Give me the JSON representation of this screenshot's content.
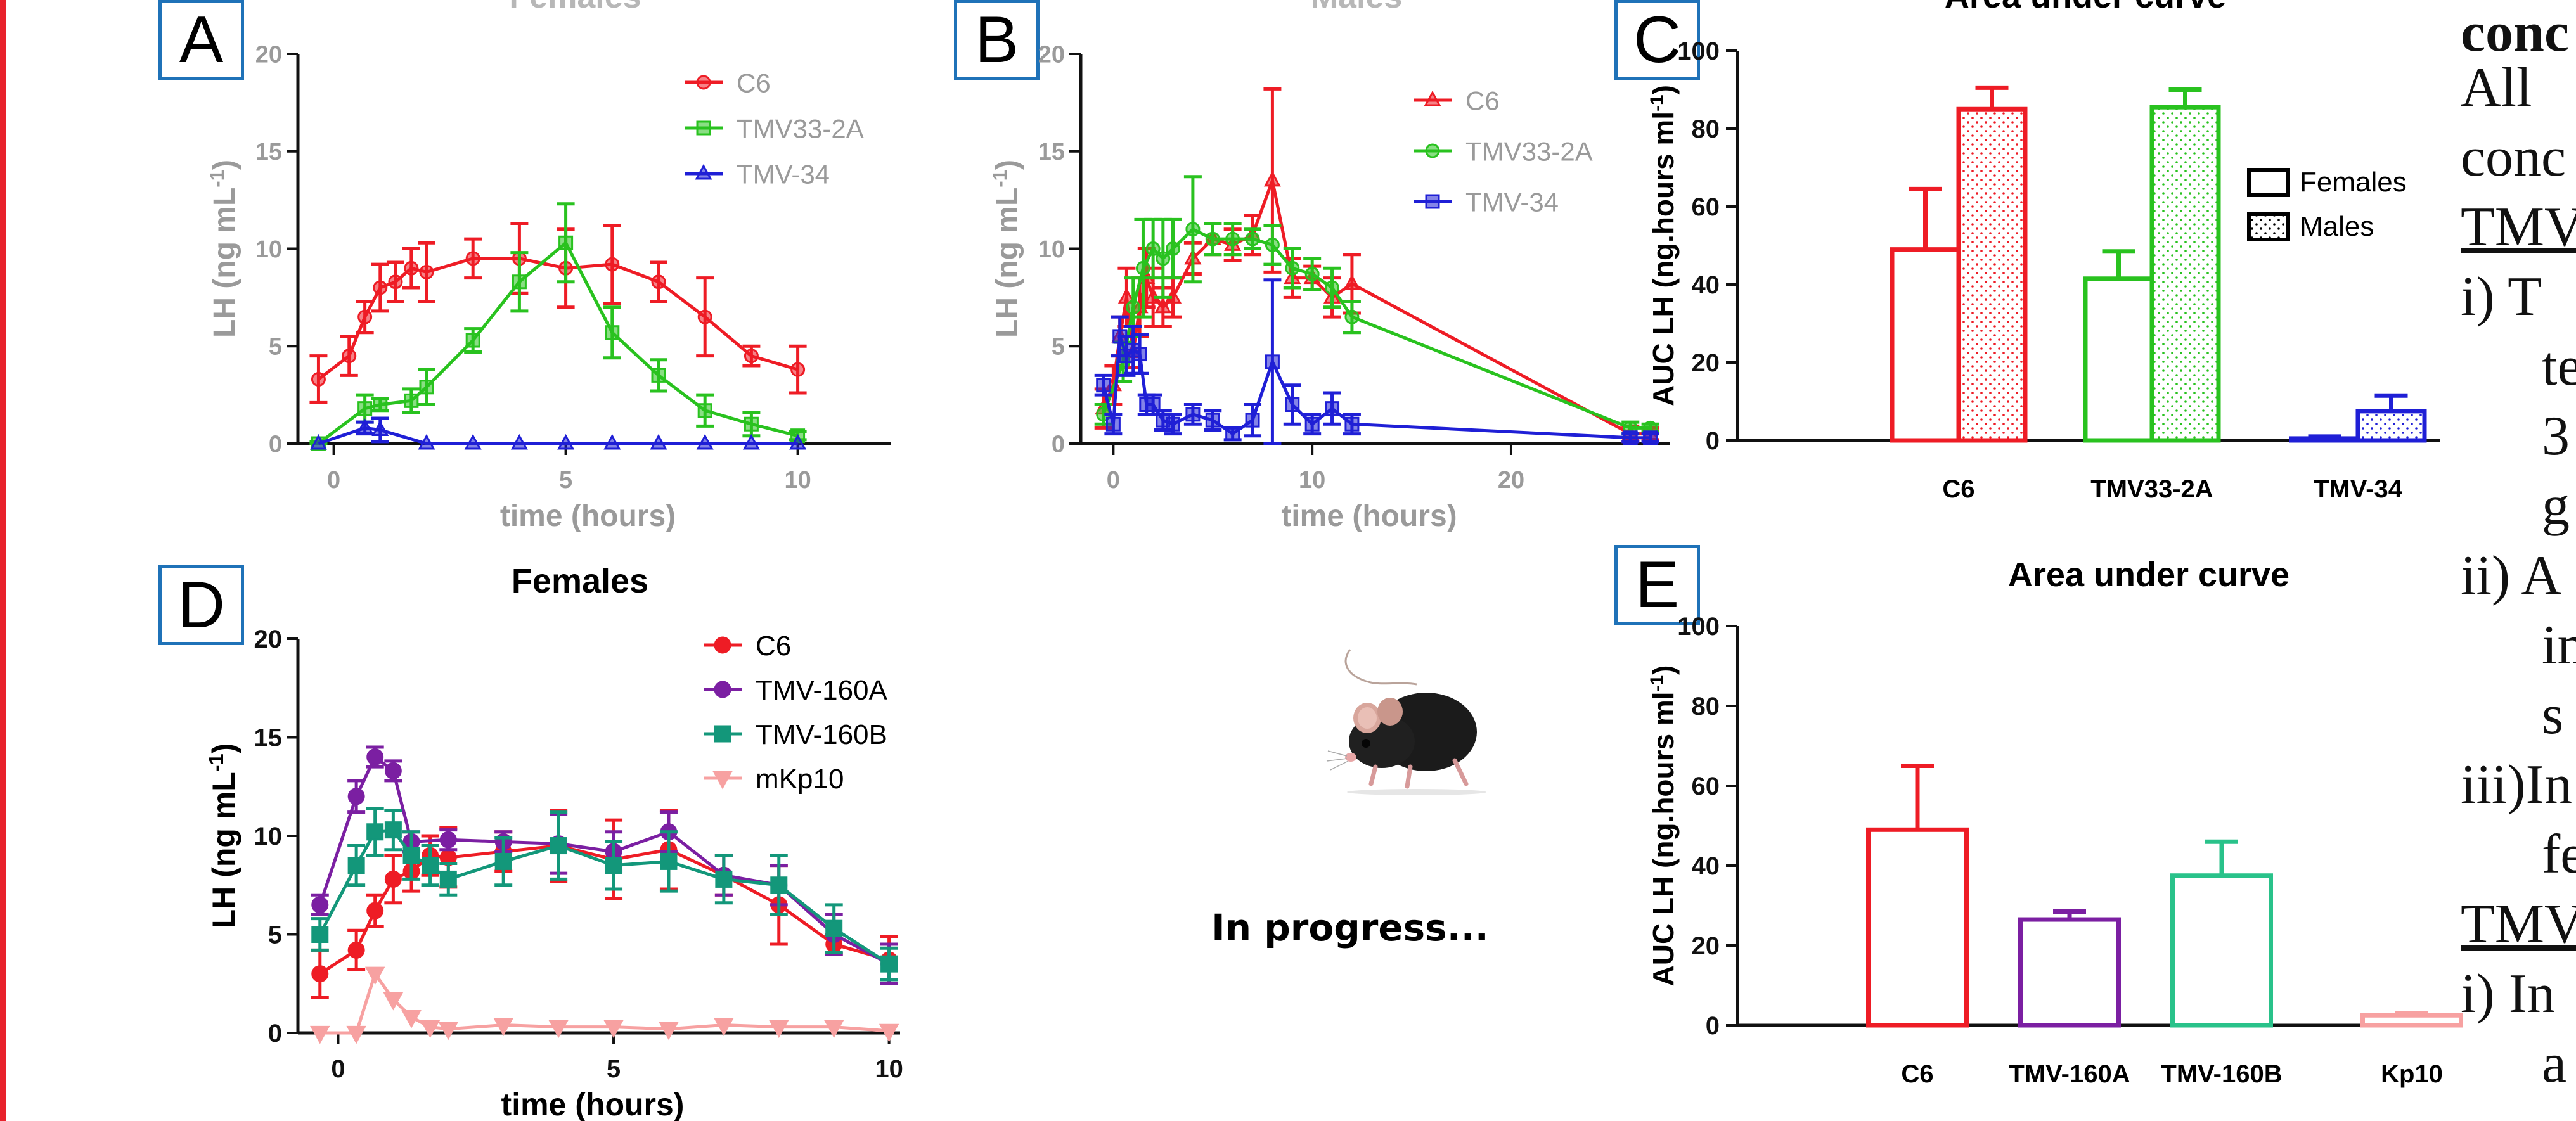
{
  "panels": {
    "A": {
      "letter": "A",
      "title": "Females"
    },
    "B": {
      "letter": "B",
      "title": "Males"
    },
    "C": {
      "letter": "C",
      "title": "Area under curve"
    },
    "D": {
      "letter": "D",
      "title": "Females"
    },
    "E": {
      "letter": "E",
      "title": "Area under curve"
    }
  },
  "progress_text": "In progress...",
  "mouse_icon": "mouse-photo",
  "side_text": {
    "line1": "conc",
    "line2": "All",
    "line3": "conc",
    "line4": "TMV",
    "line5": "i) T",
    "line6": "te",
    "line7": "3",
    "line8": "g",
    "line9": "ii) A",
    "line10": "in",
    "line11": "s",
    "line12": "iii)In",
    "line13": "fe",
    "line14": "TMV",
    "line15": "i) In",
    "line16": "a"
  },
  "colors": {
    "red": "#ee1c25",
    "green": "#29c21f",
    "blue": "#1f1fd6",
    "purple": "#7b1fa2",
    "teal": "#13977a",
    "pink": "#f7a1a1",
    "grey_text": "#9a9a9a",
    "panel_border": "#1f72b8",
    "rule": "#e8212b"
  },
  "chart_data": [
    {
      "id": "A",
      "type": "line",
      "title": "Females",
      "xlabel": "time (hours)",
      "ylabel": "LH (ng mL-1)",
      "xlim": [
        -0.5,
        12
      ],
      "ylim": [
        0,
        20
      ],
      "xticks": [
        0,
        5,
        10
      ],
      "yticks": [
        0,
        5,
        10,
        15,
        20
      ],
      "grid": false,
      "legend": "top-right",
      "series": [
        {
          "name": "C6",
          "color": "#ee1c25",
          "marker": "circle",
          "x": [
            -0.33,
            0.33,
            0.67,
            1,
            1.33,
            1.67,
            2,
            3,
            4,
            5,
            6,
            7,
            8,
            9,
            10
          ],
          "y": [
            3.3,
            4.5,
            6.5,
            8.0,
            8.3,
            9.0,
            8.8,
            9.5,
            9.5,
            9.0,
            9.2,
            8.3,
            6.5,
            4.5,
            3.8
          ],
          "err": [
            1.2,
            1.0,
            0.8,
            1.2,
            1.0,
            1.0,
            1.5,
            1.0,
            1.8,
            2.0,
            2.0,
            1.0,
            2.0,
            0.5,
            1.2
          ]
        },
        {
          "name": "TMV33-2A",
          "color": "#29c21f",
          "marker": "square",
          "x": [
            -0.33,
            0.67,
            1,
            1.67,
            2,
            3,
            4,
            5,
            6,
            7,
            8,
            9,
            10
          ],
          "y": [
            0.0,
            1.8,
            2.0,
            2.2,
            2.9,
            5.3,
            8.3,
            10.3,
            5.7,
            3.5,
            1.7,
            1.0,
            0.4
          ],
          "err": [
            0.1,
            0.7,
            0.3,
            0.6,
            0.9,
            0.6,
            1.5,
            2.0,
            1.3,
            0.8,
            0.8,
            0.6,
            0.2
          ]
        },
        {
          "name": "TMV-34",
          "color": "#1f1fd6",
          "marker": "triangle",
          "x": [
            -0.33,
            0.67,
            1,
            2,
            3,
            4,
            5,
            6,
            7,
            8,
            9,
            10
          ],
          "y": [
            0.0,
            0.8,
            0.7,
            0.0,
            0.0,
            0.0,
            0.0,
            0.0,
            0.0,
            0.0,
            0.0,
            0.0
          ],
          "err": [
            0.0,
            0.3,
            0.6,
            0.0,
            0.0,
            0.0,
            0.0,
            0.0,
            0.0,
            0.0,
            0.0,
            0.0
          ]
        }
      ]
    },
    {
      "id": "B",
      "type": "line",
      "title": "Males",
      "xlabel": "time (hours)",
      "ylabel": "LH (ng mL-1)",
      "xlim": [
        -1,
        28
      ],
      "ylim": [
        0,
        20
      ],
      "xticks": [
        0,
        10,
        20
      ],
      "yticks": [
        0,
        5,
        10,
        15,
        20
      ],
      "grid": false,
      "legend": "top-right",
      "series": [
        {
          "name": "C6",
          "color": "#ee1c25",
          "marker": "triangle",
          "x": [
            -0.5,
            0,
            0.33,
            0.67,
            1,
            1.33,
            1.67,
            2,
            2.5,
            3,
            4,
            5,
            6,
            7,
            8,
            9,
            10,
            11,
            12,
            26,
            27
          ],
          "y": [
            1.8,
            3.0,
            5.5,
            7.5,
            4.7,
            7.0,
            8.5,
            7.5,
            7.0,
            7.5,
            9.5,
            10.5,
            10.2,
            10.7,
            13.5,
            8.5,
            8.5,
            7.5,
            8.2,
            0.5,
            0.5
          ],
          "err": [
            1.0,
            1.0,
            1.0,
            1.5,
            0.8,
            1.5,
            1.5,
            1.5,
            1.0,
            1.0,
            0.8,
            0.8,
            0.8,
            1.0,
            4.7,
            1.0,
            0.6,
            1.0,
            1.5,
            0.4,
            0.3
          ]
        },
        {
          "name": "TMV33-2A",
          "color": "#29c21f",
          "marker": "circle",
          "x": [
            -0.5,
            0.5,
            1,
            1.5,
            2,
            2.5,
            3,
            4,
            5,
            6,
            7,
            8,
            9,
            10,
            11,
            12,
            26,
            27
          ],
          "y": [
            1.5,
            4.2,
            7.0,
            9.0,
            10.0,
            9.5,
            10.0,
            11.0,
            10.5,
            10.5,
            10.5,
            10.2,
            9.0,
            8.7,
            8.0,
            6.5,
            0.8,
            0.8
          ],
          "err": [
            0.5,
            1.0,
            1.5,
            2.5,
            1.5,
            2.0,
            1.5,
            2.7,
            0.8,
            0.8,
            0.5,
            1.0,
            1.0,
            0.8,
            1.0,
            0.8,
            0.3,
            0.2
          ]
        },
        {
          "name": "TMV-34",
          "color": "#1f1fd6",
          "marker": "square",
          "x": [
            -0.5,
            0,
            0.33,
            0.67,
            1,
            1.33,
            1.67,
            2,
            2.5,
            3,
            4,
            5,
            6,
            7,
            8,
            9,
            10,
            11,
            12,
            26,
            27
          ],
          "y": [
            3.0,
            1.0,
            5.5,
            4.5,
            4.8,
            4.6,
            2.0,
            2.0,
            1.2,
            1.0,
            1.5,
            1.2,
            0.5,
            1.2,
            4.2,
            2.0,
            1.0,
            1.8,
            1.0,
            0.3,
            0.3
          ],
          "err": [
            0.5,
            0.5,
            1.0,
            1.0,
            1.2,
            1.0,
            0.5,
            0.5,
            0.5,
            0.5,
            0.5,
            0.5,
            0.3,
            0.8,
            4.2,
            1.0,
            0.5,
            0.8,
            0.5,
            0.2,
            0.2
          ]
        }
      ]
    },
    {
      "id": "C",
      "type": "bar",
      "title": "Area under curve",
      "xlabel": "",
      "ylabel": "AUC LH (ng.hours ml-1)",
      "ylim": [
        0,
        100
      ],
      "yticks": [
        0,
        20,
        40,
        60,
        80,
        100
      ],
      "categories": [
        "C6",
        "TMV33-2A",
        "TMV-34"
      ],
      "category_colors": [
        "#ee1c25",
        "#29c21f",
        "#1f1fd6"
      ],
      "legend": "right",
      "series": [
        {
          "name": "Females",
          "pattern": "open",
          "values": [
            49,
            41.5,
            0.5
          ],
          "err": [
            15.5,
            7,
            0.5
          ]
        },
        {
          "name": "Males",
          "pattern": "dotted",
          "values": [
            85,
            85.5,
            7.5
          ],
          "err": [
            5.5,
            4.5,
            4.0
          ]
        }
      ]
    },
    {
      "id": "D",
      "type": "line",
      "title": "Females",
      "xlabel": "time (hours)",
      "ylabel": "LH (ng mL-1)",
      "xlim": [
        -0.5,
        10.2
      ],
      "ylim": [
        0,
        20
      ],
      "xticks": [
        0,
        5,
        10
      ],
      "yticks": [
        0,
        5,
        10,
        15,
        20
      ],
      "grid": false,
      "legend": "top-right",
      "series": [
        {
          "name": "C6",
          "color": "#ee1c25",
          "marker": "circle",
          "x": [
            -0.33,
            0.33,
            0.67,
            1,
            1.33,
            1.67,
            2,
            3,
            4,
            5,
            6,
            7,
            8,
            9,
            10
          ],
          "y": [
            3.0,
            4.2,
            6.2,
            7.8,
            8.2,
            9.0,
            8.9,
            9.2,
            9.5,
            8.8,
            9.3,
            8.0,
            6.5,
            4.5,
            3.7
          ],
          "err": [
            1.2,
            1.0,
            0.8,
            1.2,
            1.0,
            1.0,
            1.5,
            1.0,
            1.8,
            2.0,
            2.0,
            1.0,
            2.0,
            0.5,
            1.2
          ]
        },
        {
          "name": "TMV-160A",
          "color": "#7b1fa2",
          "marker": "circle",
          "x": [
            -0.33,
            0.33,
            0.67,
            1,
            1.33,
            2,
            3,
            4,
            5,
            6,
            7,
            8,
            9,
            10
          ],
          "y": [
            6.5,
            12.0,
            14.0,
            13.3,
            9.7,
            9.8,
            9.7,
            9.6,
            9.2,
            10.2,
            8.0,
            7.5,
            5.0,
            3.5
          ],
          "err": [
            0.5,
            0.8,
            0.5,
            0.5,
            0.5,
            0.5,
            0.5,
            1.5,
            1.0,
            1.0,
            1.0,
            1.0,
            1.0,
            1.0
          ]
        },
        {
          "name": "TMV-160B",
          "color": "#13977a",
          "marker": "square",
          "x": [
            -0.33,
            0.33,
            0.67,
            1,
            1.33,
            1.67,
            2,
            3,
            4,
            5,
            6,
            7,
            8,
            9,
            10
          ],
          "y": [
            5.0,
            8.5,
            10.2,
            10.3,
            9.0,
            8.5,
            7.8,
            8.7,
            9.5,
            8.5,
            8.7,
            7.8,
            7.5,
            5.3,
            3.5
          ],
          "err": [
            0.8,
            1.0,
            1.2,
            1.0,
            1.2,
            1.0,
            0.8,
            1.2,
            1.7,
            1.2,
            1.5,
            1.2,
            1.5,
            1.2,
            0.8
          ]
        },
        {
          "name": "mKp10",
          "color": "#f7a1a1",
          "marker": "triangle-down",
          "x": [
            -0.33,
            0.33,
            0.67,
            1,
            1.33,
            1.67,
            2,
            3,
            4,
            5,
            6,
            7,
            8,
            9,
            10
          ],
          "y": [
            0.0,
            0.0,
            3.0,
            1.7,
            0.8,
            0.3,
            0.2,
            0.4,
            0.3,
            0.3,
            0.2,
            0.4,
            0.3,
            0.3,
            0.1
          ],
          "err": [
            0,
            0,
            0,
            0,
            0,
            0,
            0,
            0,
            0,
            0,
            0,
            0,
            0,
            0,
            0
          ]
        }
      ]
    },
    {
      "id": "E",
      "type": "bar",
      "title": "Area under curve",
      "xlabel": "",
      "ylabel": "AUC LH (ng.hours ml-1)",
      "ylim": [
        0,
        100
      ],
      "yticks": [
        0,
        20,
        40,
        60,
        80,
        100
      ],
      "categories": [
        "C6",
        "TMV-160A",
        "TMV-160B",
        "Kp10"
      ],
      "category_colors": [
        "#ee1c25",
        "#7b1fa2",
        "#29c28a",
        "#f7a1a1"
      ],
      "series": [
        {
          "name": "",
          "pattern": "open",
          "values": [
            49,
            26.5,
            37.5,
            2.5
          ],
          "err": [
            16,
            2,
            8.5,
            0.5
          ]
        }
      ]
    }
  ]
}
